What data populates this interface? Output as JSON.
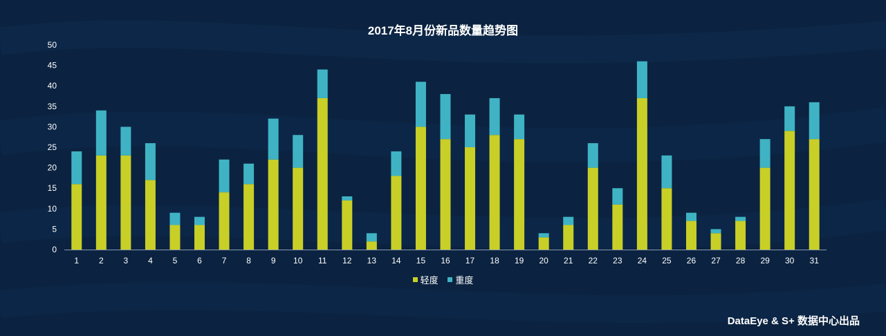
{
  "chart_data": {
    "type": "bar",
    "stacked": true,
    "title": "2017年8月份新品数量趋势图",
    "categories": [
      "1",
      "2",
      "3",
      "4",
      "5",
      "6",
      "7",
      "8",
      "9",
      "10",
      "11",
      "12",
      "13",
      "14",
      "15",
      "16",
      "17",
      "18",
      "19",
      "20",
      "21",
      "22",
      "23",
      "24",
      "25",
      "26",
      "27",
      "28",
      "29",
      "30",
      "31"
    ],
    "series": [
      {
        "name": "轻度",
        "color": "#c8cf27",
        "values": [
          16,
          23,
          23,
          17,
          6,
          6,
          14,
          16,
          22,
          20,
          37,
          12,
          2,
          18,
          30,
          27,
          25,
          28,
          27,
          3,
          6,
          20,
          11,
          37,
          15,
          7,
          4,
          7,
          20,
          29,
          27
        ]
      },
      {
        "name": "重度",
        "color": "#3fb3c3",
        "values": [
          8,
          11,
          7,
          9,
          3,
          2,
          8,
          5,
          10,
          8,
          7,
          1,
          2,
          6,
          11,
          11,
          8,
          9,
          6,
          1,
          2,
          6,
          4,
          9,
          8,
          2,
          1,
          1,
          7,
          6,
          9
        ]
      }
    ],
    "ylim": [
      0,
      50
    ],
    "yticks": [
      "0",
      "5",
      "10",
      "15",
      "20",
      "25",
      "30",
      "35",
      "40",
      "45",
      "50"
    ],
    "grid": false,
    "legend_position": "bottom"
  },
  "footer": "DataEye & S+ 数据中心出品"
}
